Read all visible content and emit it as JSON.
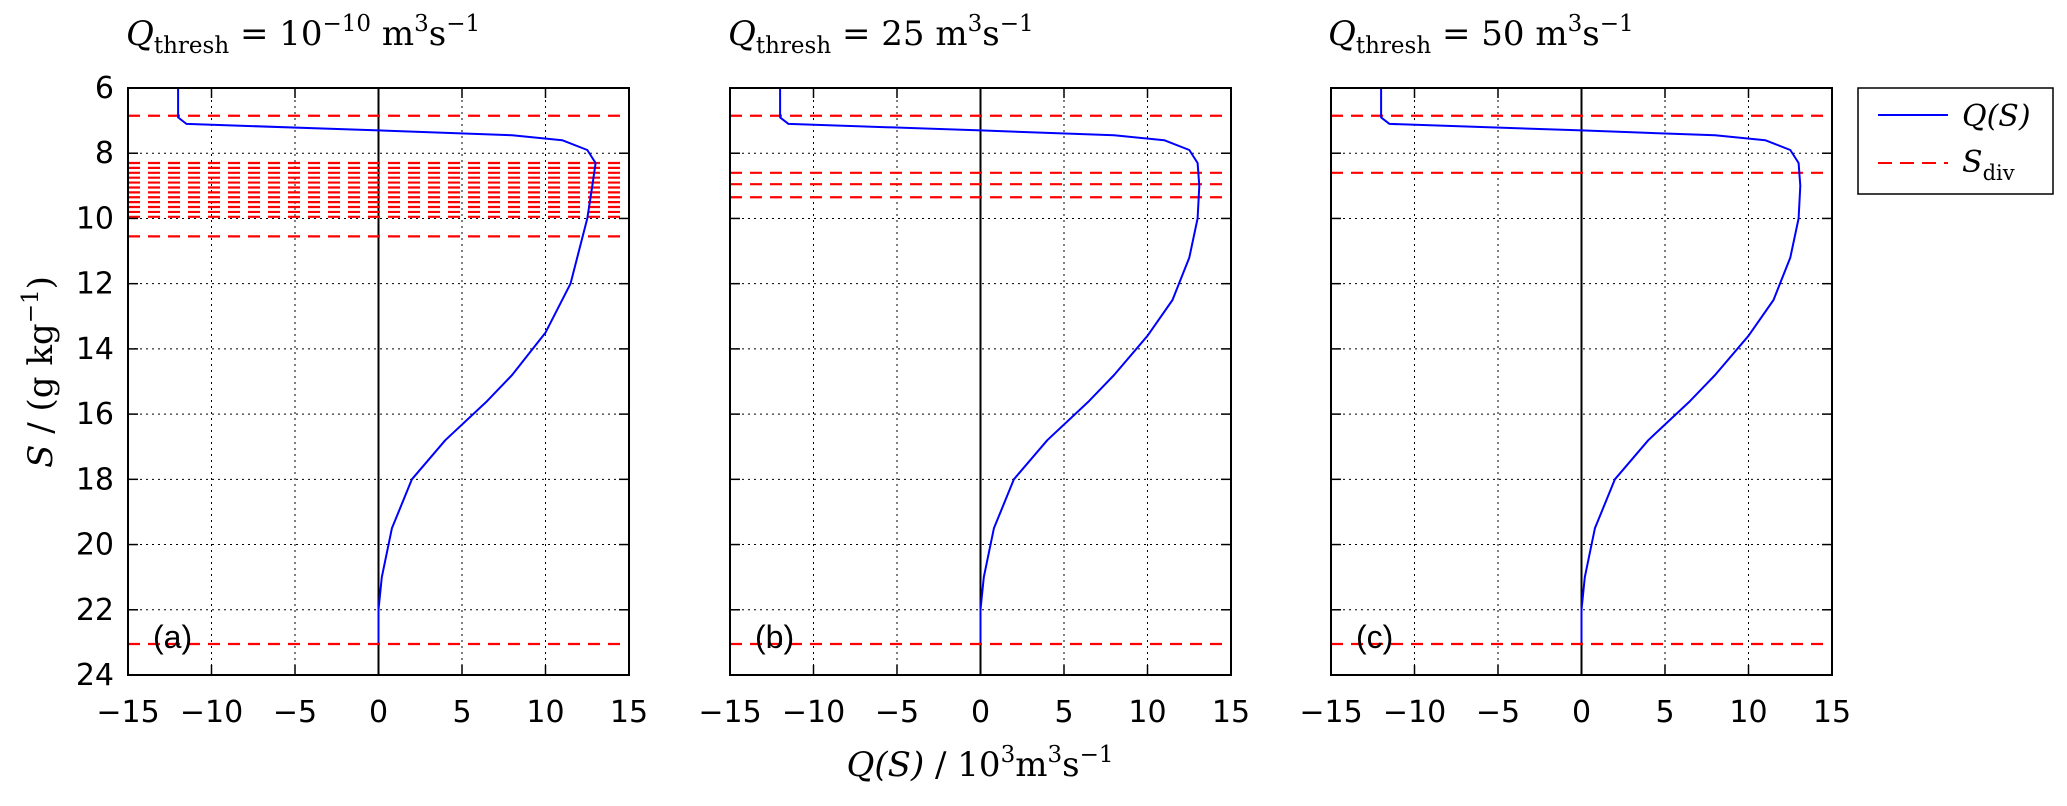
{
  "figure": {
    "ylabel": {
      "sym": "S",
      "rest": " / (g kg",
      "exp": "−1",
      "close": ")"
    },
    "xlabel": {
      "sym": "Q",
      "mid": "(S)",
      "rest": " / 10",
      "exp": "3",
      "unit": "m",
      "exp2": "3",
      "tail": "s",
      "exp3": "−1"
    },
    "legend": {
      "q": "Q(S)",
      "sdiv_sym": "S",
      "sdiv_sub": "div"
    },
    "colors": {
      "curve": "#0000ff",
      "sdiv": "#ff0000",
      "zero": "#000000",
      "grid": "#000000"
    }
  },
  "chart_data": [
    {
      "type": "line",
      "panel_label": "(a)",
      "title": {
        "sym": "Q",
        "sub": "thresh",
        "eq": " = 10",
        "exp": "−10",
        "unit": " m",
        "uexp": "3",
        "tail": "s",
        "texp": "−1"
      },
      "xlim": [
        -15,
        15
      ],
      "ylim": [
        24,
        6
      ],
      "xticks": [
        "−15",
        "−10",
        "−5",
        "0",
        "5",
        "10",
        "15"
      ],
      "yticks": [
        "6",
        "8",
        "10",
        "12",
        "14",
        "16",
        "18",
        "20",
        "22",
        "24"
      ],
      "xtick_values": [
        -15,
        -10,
        -5,
        0,
        5,
        10,
        15
      ],
      "ytick_values": [
        6,
        8,
        10,
        12,
        14,
        16,
        18,
        20,
        22,
        24
      ],
      "grid": true,
      "series": [
        {
          "name": "Q(S)",
          "x": [
            -12,
            -12,
            -11.5,
            0,
            8,
            11,
            12.5,
            13,
            12.8,
            12.5,
            11.5,
            10,
            8,
            6.5,
            4,
            2,
            0.8,
            0.2,
            0,
            0
          ],
          "y": [
            6,
            6.9,
            7.1,
            7.3,
            7.45,
            7.6,
            7.9,
            8.3,
            9,
            10,
            12,
            13.5,
            14.8,
            15.6,
            16.8,
            18,
            19.5,
            21,
            22,
            23
          ]
        },
        {
          "name": "S_div",
          "y": [
            6.85,
            8.3,
            8.45,
            8.6,
            8.75,
            8.9,
            9.05,
            9.2,
            9.35,
            9.5,
            9.65,
            9.8,
            9.95,
            10.55,
            23.05
          ]
        }
      ]
    },
    {
      "type": "line",
      "panel_label": "(b)",
      "title": {
        "sym": "Q",
        "sub": "thresh",
        "eq": " = 25",
        "unit": " m",
        "uexp": "3",
        "tail": "s",
        "texp": "−1"
      },
      "xlim": [
        -15,
        15
      ],
      "ylim": [
        24,
        6
      ],
      "xticks": [
        "−15",
        "−10",
        "−5",
        "0",
        "5",
        "10",
        "15"
      ],
      "yticks": [
        "6",
        "8",
        "10",
        "12",
        "14",
        "16",
        "18",
        "20",
        "22",
        "24"
      ],
      "xtick_values": [
        -15,
        -10,
        -5,
        0,
        5,
        10,
        15
      ],
      "ytick_values": [
        6,
        8,
        10,
        12,
        14,
        16,
        18,
        20,
        22,
        24
      ],
      "grid": true,
      "series": [
        {
          "name": "Q(S)",
          "x": [
            -12,
            -12,
            -11.5,
            0,
            8,
            11,
            12.5,
            13,
            13.1,
            13,
            12.5,
            11.5,
            10,
            8,
            6.5,
            4,
            2,
            0.8,
            0.2,
            0,
            0
          ],
          "y": [
            6,
            6.9,
            7.1,
            7.3,
            7.45,
            7.6,
            7.9,
            8.3,
            9,
            10,
            11.2,
            12.5,
            13.6,
            14.8,
            15.6,
            16.8,
            18,
            19.5,
            21,
            22,
            23
          ]
        },
        {
          "name": "S_div",
          "y": [
            6.85,
            8.6,
            8.95,
            9.35,
            23.05
          ]
        }
      ]
    },
    {
      "type": "line",
      "panel_label": "(c)",
      "title": {
        "sym": "Q",
        "sub": "thresh",
        "eq": " = 50",
        "unit": " m",
        "uexp": "3",
        "tail": "s",
        "texp": "−1"
      },
      "xlim": [
        -15,
        15
      ],
      "ylim": [
        24,
        6
      ],
      "xticks": [
        "−15",
        "−10",
        "−5",
        "0",
        "5",
        "10",
        "15"
      ],
      "yticks": [
        "6",
        "8",
        "10",
        "12",
        "14",
        "16",
        "18",
        "20",
        "22",
        "24"
      ],
      "xtick_values": [
        -15,
        -10,
        -5,
        0,
        5,
        10,
        15
      ],
      "ytick_values": [
        6,
        8,
        10,
        12,
        14,
        16,
        18,
        20,
        22,
        24
      ],
      "grid": true,
      "series": [
        {
          "name": "Q(S)",
          "x": [
            -12,
            -12,
            -11.5,
            0,
            8,
            11,
            12.5,
            13,
            13.1,
            13,
            12.5,
            11.5,
            10,
            8,
            6.5,
            4,
            2,
            0.8,
            0.2,
            0,
            0
          ],
          "y": [
            6,
            6.9,
            7.1,
            7.3,
            7.45,
            7.6,
            7.9,
            8.3,
            9,
            10,
            11.2,
            12.5,
            13.6,
            14.8,
            15.6,
            16.8,
            18,
            19.5,
            21,
            22,
            23
          ]
        },
        {
          "name": "S_div",
          "y": [
            6.85,
            8.6,
            23.05
          ]
        }
      ]
    }
  ]
}
